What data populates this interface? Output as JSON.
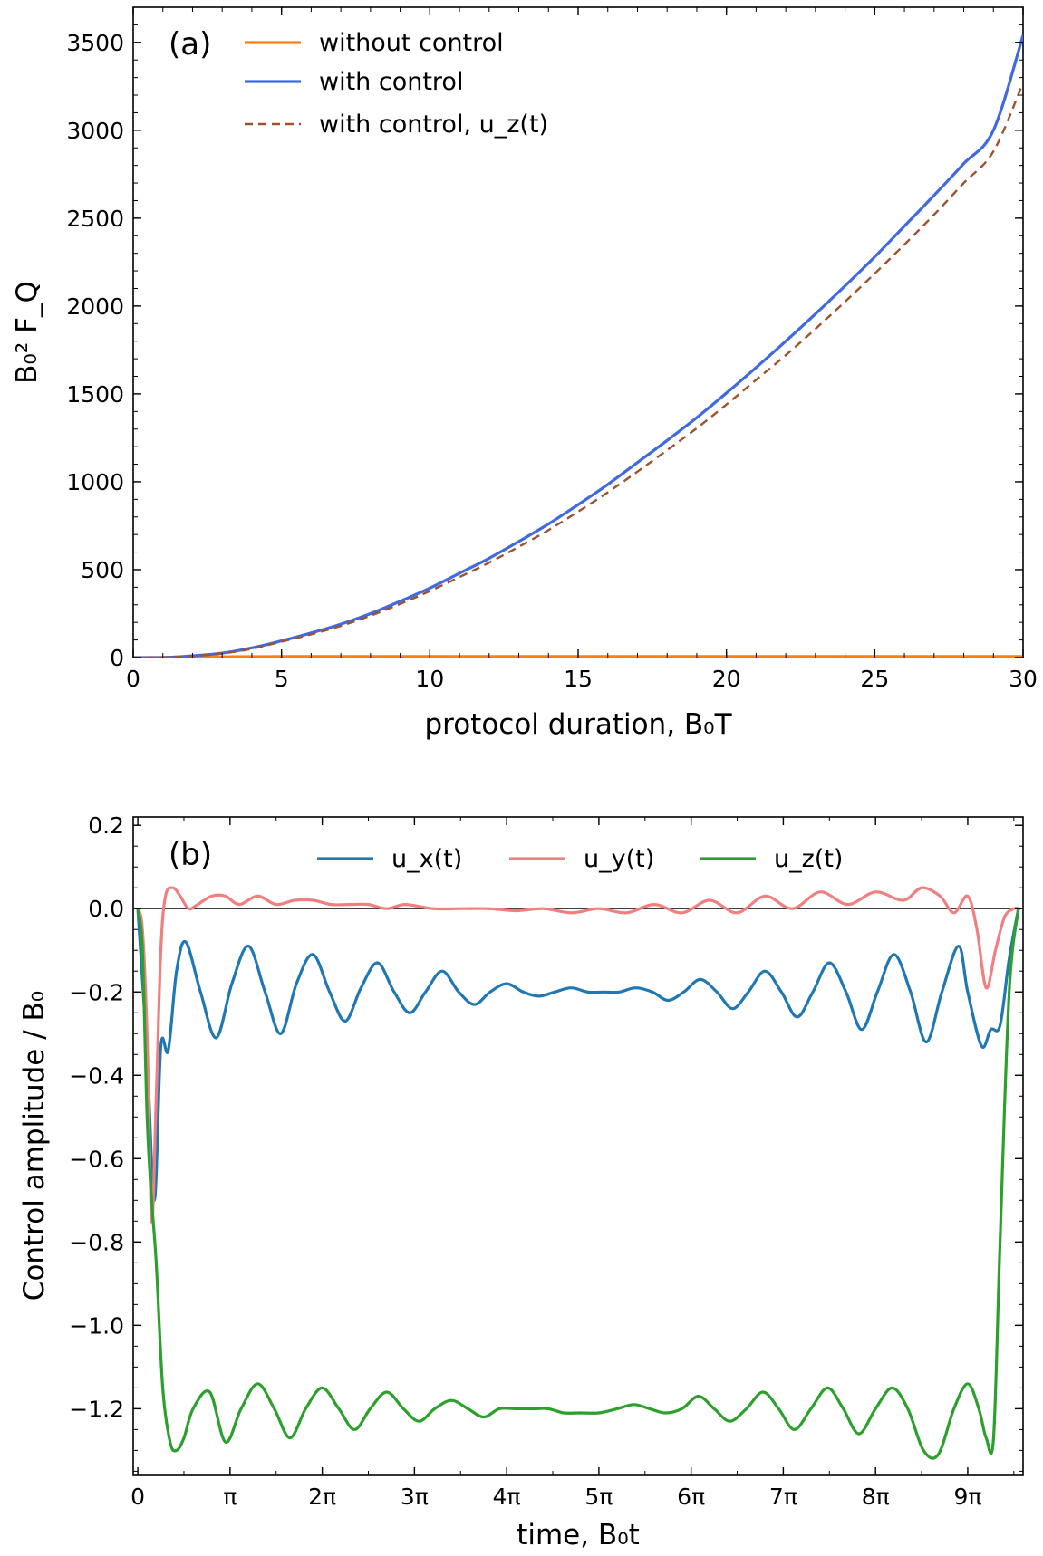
{
  "chart_data": [
    {
      "type": "line",
      "panel_label": "(a)",
      "xlabel": "protocol duration, B₀T",
      "ylabel": "B₀² F_Q",
      "xlim": [
        0,
        30
      ],
      "ylim": [
        0,
        3700
      ],
      "xticks": [
        0,
        5,
        10,
        15,
        20,
        25,
        30
      ],
      "xtick_labels": [
        "0",
        "5",
        "10",
        "15",
        "20",
        "25",
        "30"
      ],
      "yticks": [
        0,
        500,
        1000,
        1500,
        2000,
        2500,
        3000,
        3500
      ],
      "ytick_labels": [
        "0",
        "500",
        "1000",
        "1500",
        "2000",
        "2500",
        "3000",
        "3500"
      ],
      "legend_position": "top-left",
      "x": [
        0,
        1,
        2,
        3,
        4,
        5,
        6,
        7,
        8,
        9,
        10,
        11,
        12,
        13,
        14,
        15,
        16,
        17,
        18,
        19,
        20,
        21,
        22,
        23,
        24,
        25,
        26,
        27,
        28,
        29,
        30
      ],
      "series": [
        {
          "name": "without control",
          "color": "#ff7f0e",
          "style": "solid",
          "values": [
            0,
            1,
            3,
            4,
            5,
            6,
            6,
            6,
            6,
            6,
            6,
            6,
            6,
            6,
            6,
            6,
            6,
            6,
            6,
            6,
            6,
            6,
            6,
            6,
            6,
            6,
            6,
            6,
            6,
            6,
            6
          ]
        },
        {
          "name": "with control",
          "color": "#4169e1",
          "style": "solid",
          "values": [
            0,
            0,
            10,
            25,
            55,
            95,
            140,
            190,
            250,
            320,
            395,
            480,
            565,
            660,
            760,
            870,
            985,
            1110,
            1235,
            1365,
            1505,
            1650,
            1800,
            1955,
            2115,
            2280,
            2455,
            2630,
            2810,
            3000,
            3540
          ]
        },
        {
          "name": "with control, u_z(t)",
          "color": "#a0522d",
          "style": "dashed",
          "values": [
            0,
            0,
            9,
            23,
            50,
            90,
            132,
            180,
            238,
            305,
            378,
            458,
            540,
            630,
            725,
            830,
            940,
            1058,
            1180,
            1305,
            1440,
            1580,
            1720,
            1870,
            2025,
            2185,
            2350,
            2520,
            2700,
            2880,
            3270
          ]
        }
      ]
    },
    {
      "type": "line",
      "panel_label": "(b)",
      "xlabel": "time, B₀t",
      "ylabel": "Control amplitude / B₀",
      "xlim": [
        -0.05,
        9.6
      ],
      "ylim": [
        -1.36,
        0.22
      ],
      "xticks": [
        0,
        1,
        2,
        3,
        4,
        5,
        6,
        7,
        8,
        9
      ],
      "xtick_labels": [
        "0",
        "π",
        "2π",
        "3π",
        "4π",
        "5π",
        "6π",
        "7π",
        "8π",
        "9π"
      ],
      "yticks": [
        0.2,
        0.0,
        -0.2,
        -0.4,
        -0.6,
        -0.8,
        -1.0,
        -1.2
      ],
      "ytick_labels": [
        "0.2",
        "0.0",
        "−0.2",
        "−0.4",
        "−0.6",
        "−0.8",
        "−1.0",
        "−1.2"
      ],
      "legend_position": "top",
      "x_units": "multiples of π",
      "series": [
        {
          "name": "u_x(t)",
          "color": "#1f77b4",
          "x": [
            0,
            0.1,
            0.18,
            0.25,
            0.33,
            0.42,
            0.52,
            0.68,
            0.85,
            1.02,
            1.2,
            1.38,
            1.55,
            1.72,
            1.9,
            2.08,
            2.25,
            2.42,
            2.6,
            2.78,
            2.95,
            3.12,
            3.3,
            3.48,
            3.65,
            3.82,
            4.0,
            4.18,
            4.35,
            4.52,
            4.7,
            4.88,
            5.05,
            5.22,
            5.4,
            5.58,
            5.75,
            5.92,
            6.1,
            6.28,
            6.45,
            6.62,
            6.8,
            6.98,
            7.15,
            7.32,
            7.5,
            7.68,
            7.85,
            8.02,
            8.2,
            8.38,
            8.55,
            8.72,
            8.9,
            9.0,
            9.15,
            9.25,
            9.35,
            9.45,
            9.55
          ],
          "values": [
            0,
            -0.35,
            -0.7,
            -0.33,
            -0.34,
            -0.15,
            -0.08,
            -0.2,
            -0.31,
            -0.18,
            -0.09,
            -0.2,
            -0.3,
            -0.18,
            -0.11,
            -0.2,
            -0.27,
            -0.19,
            -0.13,
            -0.2,
            -0.25,
            -0.2,
            -0.15,
            -0.2,
            -0.23,
            -0.2,
            -0.18,
            -0.2,
            -0.21,
            -0.2,
            -0.19,
            -0.2,
            -0.2,
            -0.2,
            -0.19,
            -0.2,
            -0.22,
            -0.2,
            -0.17,
            -0.2,
            -0.24,
            -0.2,
            -0.15,
            -0.2,
            -0.26,
            -0.2,
            -0.13,
            -0.2,
            -0.29,
            -0.2,
            -0.11,
            -0.2,
            -0.32,
            -0.2,
            -0.09,
            -0.2,
            -0.33,
            -0.29,
            -0.28,
            -0.12,
            0.0
          ]
        },
        {
          "name": "u_y(t)",
          "color": "#f08080",
          "x": [
            0,
            0.05,
            0.1,
            0.15,
            0.2,
            0.25,
            0.3,
            0.38,
            0.46,
            0.55,
            0.65,
            0.8,
            0.95,
            1.1,
            1.3,
            1.5,
            1.7,
            1.9,
            2.1,
            2.3,
            2.5,
            2.7,
            2.9,
            3.2,
            3.5,
            3.8,
            4.1,
            4.4,
            4.7,
            5.0,
            5.3,
            5.6,
            5.9,
            6.2,
            6.5,
            6.8,
            7.1,
            7.4,
            7.7,
            8.0,
            8.3,
            8.5,
            8.7,
            8.85,
            9.0,
            9.1,
            9.2,
            9.3,
            9.4,
            9.5,
            9.55
          ],
          "values": [
            0,
            -0.05,
            -0.3,
            -0.75,
            -0.45,
            -0.1,
            0.03,
            0.05,
            0.03,
            0.0,
            0.01,
            0.03,
            0.03,
            0.01,
            0.03,
            0.01,
            0.02,
            0.02,
            0.01,
            0.01,
            0.01,
            0.0,
            0.01,
            0.0,
            0.0,
            0.0,
            -0.005,
            0.0,
            -0.01,
            0.0,
            -0.01,
            0.01,
            -0.01,
            0.02,
            -0.01,
            0.03,
            0.0,
            0.04,
            0.01,
            0.04,
            0.02,
            0.05,
            0.03,
            -0.01,
            0.03,
            -0.05,
            -0.19,
            -0.1,
            -0.02,
            0.0,
            0.0
          ]
        },
        {
          "name": "u_z(t)",
          "color": "#2ca02c",
          "x": [
            0,
            0.05,
            0.1,
            0.15,
            0.2,
            0.27,
            0.35,
            0.42,
            0.5,
            0.6,
            0.78,
            0.95,
            1.12,
            1.3,
            1.48,
            1.65,
            1.82,
            2.0,
            2.18,
            2.35,
            2.52,
            2.7,
            2.88,
            3.05,
            3.22,
            3.4,
            3.58,
            3.75,
            3.92,
            4.1,
            4.28,
            4.45,
            4.62,
            4.8,
            5.0,
            5.2,
            5.38,
            5.55,
            5.72,
            5.9,
            6.08,
            6.25,
            6.42,
            6.6,
            6.78,
            6.95,
            7.12,
            7.3,
            7.48,
            7.65,
            7.82,
            8.0,
            8.18,
            8.35,
            8.52,
            8.68,
            8.85,
            9.0,
            9.12,
            9.2,
            9.28,
            9.35,
            9.45,
            9.55
          ],
          "values": [
            0,
            -0.1,
            -0.5,
            -0.7,
            -0.85,
            -1.15,
            -1.28,
            -1.3,
            -1.27,
            -1.2,
            -1.16,
            -1.28,
            -1.2,
            -1.14,
            -1.2,
            -1.27,
            -1.2,
            -1.15,
            -1.2,
            -1.25,
            -1.2,
            -1.16,
            -1.2,
            -1.23,
            -1.2,
            -1.18,
            -1.2,
            -1.22,
            -1.2,
            -1.2,
            -1.2,
            -1.2,
            -1.21,
            -1.21,
            -1.21,
            -1.2,
            -1.19,
            -1.2,
            -1.21,
            -1.2,
            -1.17,
            -1.2,
            -1.23,
            -1.2,
            -1.16,
            -1.2,
            -1.25,
            -1.2,
            -1.15,
            -1.2,
            -1.26,
            -1.2,
            -1.15,
            -1.2,
            -1.3,
            -1.31,
            -1.2,
            -1.14,
            -1.2,
            -1.27,
            -1.27,
            -0.8,
            -0.2,
            0.0
          ]
        }
      ]
    }
  ]
}
